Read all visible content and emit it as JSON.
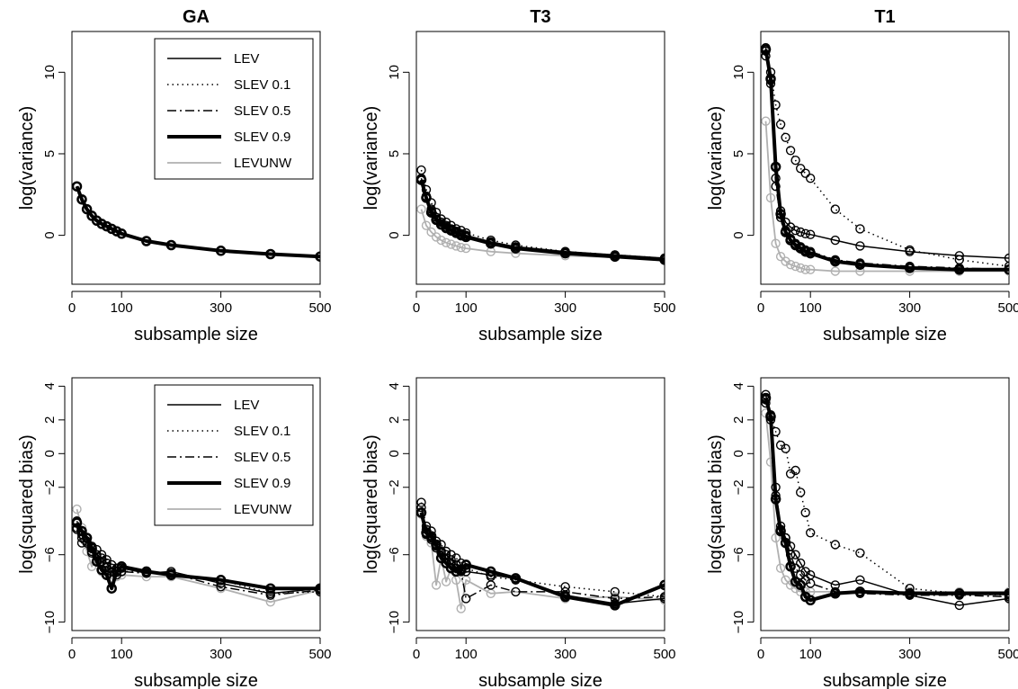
{
  "chart_data": [
    {
      "type": "line",
      "title": "GA",
      "xlabel": "subsample size",
      "ylabel": "log(variance)",
      "xlim": [
        0,
        500
      ],
      "ylim": [
        -3,
        12.5
      ],
      "x_ticks": [
        "0",
        "100",
        "300",
        "500"
      ],
      "y_ticks": [
        "0",
        "5",
        "10"
      ],
      "legend": {
        "position": "top-right",
        "entries": [
          "LEV",
          "SLEV 0.1",
          "SLEV 0.5",
          "SLEV 0.9",
          "LEVUNW"
        ]
      },
      "x": [
        10,
        20,
        30,
        40,
        50,
        60,
        70,
        80,
        90,
        100,
        150,
        200,
        300,
        400,
        500
      ],
      "series": [
        {
          "name": "LEV",
          "values": [
            3.0,
            2.2,
            1.6,
            1.2,
            0.9,
            0.7,
            0.55,
            0.4,
            0.25,
            0.1,
            -0.35,
            -0.6,
            -0.95,
            -1.15,
            -1.3
          ]
        },
        {
          "name": "SLEV 0.1",
          "values": [
            3.0,
            2.2,
            1.6,
            1.2,
            0.9,
            0.7,
            0.55,
            0.4,
            0.25,
            0.1,
            -0.35,
            -0.6,
            -0.95,
            -1.15,
            -1.3
          ]
        },
        {
          "name": "SLEV 0.5",
          "values": [
            3.0,
            2.2,
            1.6,
            1.2,
            0.9,
            0.7,
            0.55,
            0.4,
            0.25,
            0.1,
            -0.35,
            -0.6,
            -0.95,
            -1.15,
            -1.3
          ]
        },
        {
          "name": "SLEV 0.9",
          "values": [
            3.0,
            2.2,
            1.6,
            1.2,
            0.9,
            0.7,
            0.55,
            0.4,
            0.25,
            0.1,
            -0.35,
            -0.6,
            -0.95,
            -1.15,
            -1.3
          ]
        },
        {
          "name": "LEVUNW",
          "values": [
            3.0,
            2.2,
            1.6,
            1.2,
            0.9,
            0.7,
            0.55,
            0.4,
            0.25,
            0.1,
            -0.35,
            -0.6,
            -0.95,
            -1.15,
            -1.3
          ]
        }
      ]
    },
    {
      "type": "line",
      "title": "T3",
      "xlabel": "subsample size",
      "ylabel": "log(variance)",
      "xlim": [
        0,
        500
      ],
      "ylim": [
        -3,
        12.5
      ],
      "x_ticks": [
        "0",
        "100",
        "300",
        "500"
      ],
      "y_ticks": [
        "0",
        "5",
        "10"
      ],
      "x": [
        10,
        20,
        30,
        40,
        50,
        60,
        70,
        80,
        90,
        100,
        150,
        200,
        300,
        400,
        500
      ],
      "series": [
        {
          "name": "LEV",
          "values": [
            3.5,
            2.4,
            1.6,
            1.1,
            0.8,
            0.6,
            0.4,
            0.25,
            0.1,
            0.0,
            -0.4,
            -0.7,
            -1.0,
            -1.2,
            -1.4
          ]
        },
        {
          "name": "SLEV 0.1",
          "values": [
            4.0,
            2.8,
            2.0,
            1.4,
            1.0,
            0.8,
            0.6,
            0.4,
            0.3,
            0.15,
            -0.3,
            -0.6,
            -1.0,
            -1.2,
            -1.4
          ]
        },
        {
          "name": "SLEV 0.5",
          "values": [
            3.4,
            2.3,
            1.5,
            1.0,
            0.7,
            0.5,
            0.35,
            0.2,
            0.05,
            -0.05,
            -0.45,
            -0.8,
            -1.1,
            -1.3,
            -1.45
          ]
        },
        {
          "name": "SLEV 0.9",
          "values": [
            3.4,
            2.3,
            1.4,
            0.95,
            0.65,
            0.45,
            0.3,
            0.15,
            0.0,
            -0.1,
            -0.5,
            -0.8,
            -1.1,
            -1.3,
            -1.5
          ]
        },
        {
          "name": "LEVUNW",
          "values": [
            1.6,
            0.6,
            0.2,
            -0.1,
            -0.3,
            -0.45,
            -0.55,
            -0.65,
            -0.75,
            -0.8,
            -1.0,
            -1.1,
            -1.25,
            -1.35,
            -1.45
          ]
        }
      ]
    },
    {
      "type": "line",
      "title": "T1",
      "xlabel": "subsample size",
      "ylabel": "log(variance)",
      "xlim": [
        0,
        500
      ],
      "ylim": [
        -3,
        12.5
      ],
      "x_ticks": [
        "0",
        "100",
        "300",
        "500"
      ],
      "y_ticks": [
        "0",
        "5",
        "10"
      ],
      "x": [
        10,
        20,
        30,
        40,
        50,
        60,
        70,
        80,
        90,
        100,
        150,
        200,
        300,
        400,
        500
      ],
      "series": [
        {
          "name": "LEV",
          "values": [
            11.5,
            9.5,
            3.5,
            1.5,
            0.8,
            0.5,
            0.3,
            0.2,
            0.1,
            0.05,
            -0.3,
            -0.65,
            -1.0,
            -1.25,
            -1.4
          ]
        },
        {
          "name": "SLEV 0.1",
          "values": [
            11.0,
            10.0,
            8.0,
            6.8,
            6.0,
            5.2,
            4.6,
            4.1,
            3.8,
            3.5,
            1.6,
            0.4,
            -0.9,
            -1.5,
            -1.9
          ]
        },
        {
          "name": "SLEV 0.5",
          "values": [
            11.3,
            9.3,
            3.0,
            1.1,
            0.3,
            -0.2,
            -0.5,
            -0.7,
            -0.9,
            -1.0,
            -1.5,
            -1.7,
            -1.9,
            -2.0,
            -2.1
          ]
        },
        {
          "name": "SLEV 0.9",
          "values": [
            11.4,
            9.6,
            4.2,
            1.3,
            0.2,
            -0.3,
            -0.6,
            -0.8,
            -1.0,
            -1.1,
            -1.6,
            -1.8,
            -2.0,
            -2.1,
            -2.1
          ]
        },
        {
          "name": "LEVUNW",
          "values": [
            7.0,
            2.3,
            -0.5,
            -1.3,
            -1.6,
            -1.8,
            -1.9,
            -2.0,
            -2.1,
            -2.1,
            -2.2,
            -2.2,
            -2.2,
            -2.2,
            -2.2
          ]
        }
      ]
    },
    {
      "type": "line",
      "title": "",
      "xlabel": "subsample size",
      "ylabel": "log(squared bias)",
      "xlim": [
        0,
        500
      ],
      "ylim": [
        -10.5,
        4.5
      ],
      "x_ticks": [
        "0",
        "100",
        "300",
        "500"
      ],
      "y_ticks": [
        "−10",
        "−6",
        "−2",
        "0",
        "2",
        "4"
      ],
      "legend": {
        "position": "top-right",
        "entries": [
          "LEV",
          "SLEV 0.1",
          "SLEV 0.5",
          "SLEV 0.9",
          "LEVUNW"
        ]
      },
      "x": [
        10,
        20,
        30,
        40,
        50,
        60,
        70,
        80,
        90,
        100,
        150,
        200,
        300,
        400,
        500
      ],
      "series": [
        {
          "name": "LEV",
          "values": [
            -4.5,
            -5.3,
            -5.0,
            -5.8,
            -6.0,
            -6.2,
            -6.5,
            -6.8,
            -7.0,
            -6.8,
            -7.1,
            -7.0,
            -7.7,
            -8.3,
            -8.0
          ]
        },
        {
          "name": "SLEV 0.1",
          "values": [
            -4.0,
            -4.8,
            -5.2,
            -5.5,
            -5.7,
            -6.0,
            -6.3,
            -6.6,
            -6.8,
            -7.0,
            -7.0,
            -7.2,
            -7.5,
            -8.3,
            -8.2
          ]
        },
        {
          "name": "SLEV 0.5",
          "values": [
            -4.4,
            -5.0,
            -5.3,
            -5.9,
            -6.1,
            -6.4,
            -6.7,
            -7.0,
            -7.2,
            -7.0,
            -7.1,
            -7.1,
            -7.9,
            -8.4,
            -8.1
          ]
        },
        {
          "name": "SLEV 0.9",
          "values": [
            -4.1,
            -4.6,
            -5.0,
            -5.6,
            -6.4,
            -6.9,
            -7.2,
            -8.0,
            -7.0,
            -6.7,
            -7.0,
            -7.2,
            -7.5,
            -8.0,
            -8.0
          ]
        },
        {
          "name": "LEVUNW",
          "values": [
            -3.3,
            -4.4,
            -5.8,
            -6.7,
            -6.3,
            -7.0,
            -6.8,
            -7.2,
            -7.3,
            -7.2,
            -7.3,
            -7.3,
            -8.0,
            -8.8,
            -8.1
          ]
        }
      ]
    },
    {
      "type": "line",
      "title": "",
      "xlabel": "subsample size",
      "ylabel": "log(squared bias)",
      "xlim": [
        0,
        500
      ],
      "ylim": [
        -10.5,
        4.5
      ],
      "x_ticks": [
        "0",
        "100",
        "300",
        "500"
      ],
      "y_ticks": [
        "−10",
        "−6",
        "−2",
        "0",
        "2",
        "4"
      ],
      "x": [
        10,
        20,
        30,
        40,
        50,
        60,
        70,
        80,
        90,
        100,
        150,
        200,
        300,
        400,
        500
      ],
      "series": [
        {
          "name": "LEV",
          "values": [
            -3.5,
            -4.8,
            -5.0,
            -5.5,
            -5.8,
            -6.0,
            -6.3,
            -6.6,
            -6.9,
            -7.0,
            -7.2,
            -7.4,
            -8.4,
            -8.9,
            -8.6
          ]
        },
        {
          "name": "SLEV 0.1",
          "values": [
            -2.9,
            -4.3,
            -4.6,
            -5.2,
            -5.4,
            -5.8,
            -6.0,
            -6.2,
            -6.5,
            -6.8,
            -7.3,
            -7.5,
            -7.9,
            -8.2,
            -8.5
          ]
        },
        {
          "name": "SLEV 0.5",
          "values": [
            -3.2,
            -4.5,
            -5.1,
            -5.6,
            -5.9,
            -6.2,
            -6.5,
            -6.8,
            -7.0,
            -8.6,
            -7.8,
            -8.2,
            -8.2,
            -8.6,
            -8.5
          ]
        },
        {
          "name": "SLEV 0.9",
          "values": [
            -3.5,
            -4.7,
            -4.9,
            -5.4,
            -6.2,
            -6.5,
            -6.8,
            -7.0,
            -6.9,
            -6.6,
            -7.0,
            -7.4,
            -8.5,
            -9.0,
            -7.8
          ]
        },
        {
          "name": "LEVUNW",
          "values": [
            -3.6,
            -4.9,
            -5.3,
            -7.8,
            -6.2,
            -7.6,
            -6.8,
            -7.5,
            -9.2,
            -7.5,
            -8.3,
            -8.2,
            -8.6,
            -8.5,
            -8.7
          ]
        }
      ]
    },
    {
      "type": "line",
      "title": "",
      "xlabel": "subsample size",
      "ylabel": "log(squared bias)",
      "xlim": [
        0,
        500
      ],
      "ylim": [
        -10.5,
        4.5
      ],
      "x_ticks": [
        "0",
        "100",
        "300",
        "500"
      ],
      "y_ticks": [
        "−10",
        "−6",
        "−2",
        "0",
        "2",
        "4"
      ],
      "x": [
        10,
        20,
        30,
        40,
        50,
        60,
        70,
        80,
        90,
        100,
        150,
        200,
        300,
        400,
        500
      ],
      "series": [
        {
          "name": "LEV",
          "values": [
            3.5,
            2.0,
            -2.5,
            -4.3,
            -5.0,
            -5.5,
            -6.0,
            -6.5,
            -7.0,
            -7.2,
            -7.8,
            -7.5,
            -8.4,
            -9.0,
            -8.6
          ]
        },
        {
          "name": "SLEV 0.1",
          "values": [
            3.0,
            2.2,
            1.3,
            0.5,
            0.3,
            -1.2,
            -1.0,
            -2.3,
            -3.5,
            -4.7,
            -5.4,
            -5.9,
            -8.0,
            -8.3,
            -8.4
          ]
        },
        {
          "name": "SLEV 0.5",
          "values": [
            3.2,
            2.3,
            -2.0,
            -4.5,
            -5.0,
            -6.0,
            -6.8,
            -7.2,
            -7.5,
            -7.7,
            -8.2,
            -8.3,
            -8.4,
            -8.4,
            -8.5
          ]
        },
        {
          "name": "SLEV 0.9",
          "values": [
            3.3,
            2.2,
            -2.7,
            -4.6,
            -5.3,
            -6.7,
            -7.6,
            -7.8,
            -8.5,
            -8.7,
            -8.3,
            -8.2,
            -8.3,
            -8.3,
            -8.3
          ]
        },
        {
          "name": "LEVUNW",
          "values": [
            2.4,
            -0.5,
            -5.0,
            -6.8,
            -7.5,
            -7.8,
            -8.0,
            -8.2,
            -8.2,
            -8.2,
            -8.2,
            -8.2,
            -8.2,
            -8.2,
            -8.2
          ]
        }
      ]
    }
  ]
}
